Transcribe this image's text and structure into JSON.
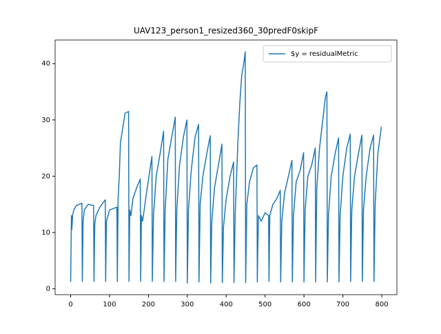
{
  "chart_data": {
    "type": "line",
    "title": "UAV123_person1_resized360_30predF0skipF",
    "x": [
      0,
      2,
      3,
      5,
      8,
      15,
      29,
      30,
      32,
      35,
      45,
      59,
      60,
      62,
      65,
      75,
      89,
      90,
      92,
      100,
      119,
      120,
      122,
      125,
      128,
      135,
      140,
      149,
      150,
      152,
      155,
      160,
      170,
      179,
      180,
      182,
      185,
      195,
      209,
      210,
      213,
      220,
      230,
      239,
      240,
      243,
      250,
      260,
      269,
      270,
      273,
      280,
      290,
      299,
      300,
      303,
      310,
      320,
      329,
      330,
      333,
      340,
      350,
      359,
      360,
      363,
      370,
      380,
      389,
      390,
      393,
      400,
      410,
      419,
      420,
      423,
      430,
      435,
      440,
      445,
      449,
      450,
      453,
      460,
      470,
      479,
      480,
      481,
      483,
      490,
      500,
      509,
      510,
      512,
      520,
      530,
      539,
      540,
      543,
      550,
      560,
      569,
      570,
      573,
      580,
      590,
      599,
      600,
      603,
      610,
      620,
      629,
      630,
      633,
      640,
      650,
      655,
      659,
      660,
      663,
      670,
      680,
      689,
      690,
      693,
      700,
      710,
      719,
      720,
      723,
      730,
      740,
      749,
      750,
      753,
      760,
      770,
      779,
      780,
      783,
      790,
      799
    ],
    "series": [
      {
        "name": "$y = residualMetric",
        "color": "#1f77b4",
        "values": [
          1.2,
          13,
          10.5,
          13,
          14,
          14.8,
          15.2,
          1.3,
          12,
          14,
          15,
          14.8,
          1.3,
          11.5,
          13,
          14.5,
          15.8,
          1.3,
          12,
          14,
          14.5,
          1.3,
          16,
          20,
          26,
          29,
          31.2,
          31.5,
          1.3,
          14,
          13,
          16,
          18,
          19.5,
          1.3,
          13,
          12,
          17,
          23.5,
          1.3,
          13,
          20,
          24,
          28,
          1.3,
          14,
          23,
          27,
          30.5,
          1.3,
          14,
          22,
          27,
          30,
          1,
          14,
          21,
          27,
          29.2,
          1.2,
          15,
          20,
          24,
          27.2,
          1,
          12,
          18,
          22,
          25.7,
          1.1,
          11,
          16,
          20,
          22.5,
          1.1,
          13,
          26,
          33,
          38,
          40,
          42.1,
          1.1,
          15,
          19,
          21.5,
          22,
          1.2,
          6,
          13,
          12,
          13.5,
          13,
          1.3,
          13,
          15,
          16,
          17.5,
          1.2,
          12,
          17,
          20,
          22.8,
          1.2,
          13,
          19,
          21,
          24.2,
          1.2,
          14,
          20,
          22,
          25,
          1.2,
          18,
          25,
          31,
          34,
          35,
          1.2,
          13,
          20,
          24,
          26.8,
          1.2,
          13,
          20,
          25,
          27.5,
          1.3,
          14,
          20,
          24,
          27.3,
          1.3,
          14,
          20,
          25,
          27.3,
          1.3,
          15,
          24,
          28.8
        ]
      }
    ],
    "xlim": [
      -39.95,
      838.95
    ],
    "ylim": [
      -1.05,
      44.2
    ],
    "xticks": [
      0,
      100,
      200,
      300,
      400,
      500,
      600,
      700,
      800
    ],
    "yticks": [
      0,
      10,
      20,
      30,
      40
    ],
    "legend": "upper right"
  }
}
